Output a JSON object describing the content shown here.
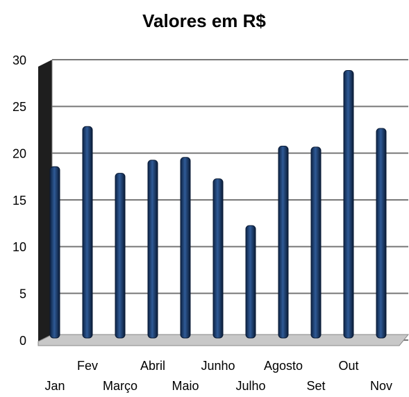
{
  "chart_data": {
    "type": "bar",
    "title": "Valores em R$",
    "categories": [
      "Jan",
      "Fev",
      "Março",
      "Abril",
      "Maio",
      "Junho",
      "Julho",
      "Agosto",
      "Set",
      "Out",
      "Nov"
    ],
    "values": [
      18.7,
      23,
      18,
      19.4,
      19.7,
      17.4,
      12.4,
      20.9,
      20.8,
      29,
      22.8
    ],
    "color": "#1f3f73",
    "ylim": [
      0,
      30
    ],
    "yticks": [
      0,
      5,
      10,
      15,
      20,
      25,
      30
    ],
    "grid": true
  }
}
